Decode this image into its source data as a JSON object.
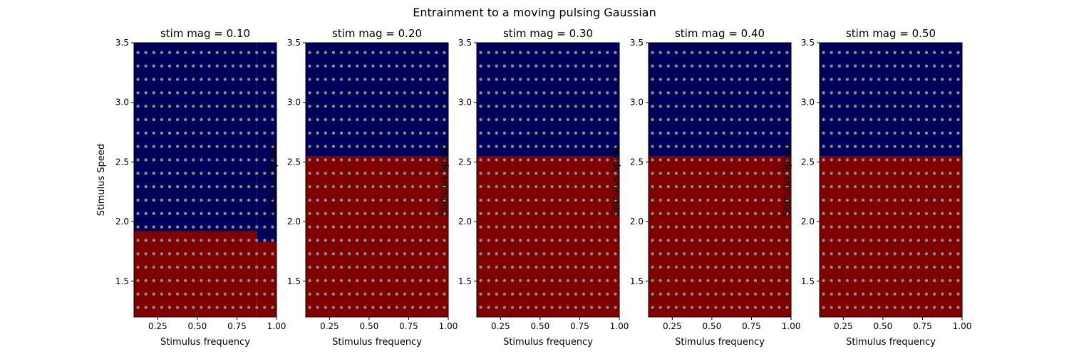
{
  "figure": {
    "suptitle": "Entrainment to a moving pulsing Gaussian"
  },
  "chart_data": [
    {
      "type": "heatmap",
      "title": "stim mag = 0.10",
      "xlabel": "Stimulus frequency",
      "ylabel": "Stimulus Speed",
      "xlim": [
        0.1,
        1.0
      ],
      "ylim": [
        1.2,
        3.5
      ],
      "xticks": [
        0.25,
        0.5,
        0.75,
        1.0
      ],
      "xtick_labels": [
        "0.25",
        "0.50",
        "0.75",
        "1.00"
      ],
      "yticks": [
        1.5,
        2.0,
        2.5,
        3.0,
        3.5
      ],
      "ytick_labels": [
        "1.5",
        "2.0",
        "2.5",
        "3.0",
        "3.5"
      ],
      "regions": [
        {
          "state": "red",
          "x_range": [
            0.1,
            0.875
          ],
          "y_range": [
            1.2,
            1.92
          ]
        },
        {
          "state": "red",
          "x_range": [
            0.875,
            1.0
          ],
          "y_range": [
            1.2,
            1.83
          ]
        },
        {
          "state": "blue",
          "x_range": [
            0.1,
            0.875
          ],
          "y_range": [
            1.92,
            3.5
          ]
        },
        {
          "state": "blue",
          "x_range": [
            0.875,
            1.0
          ],
          "y_range": [
            1.83,
            3.5
          ]
        }
      ],
      "sample_grid": {
        "x_start": 0.125,
        "x_step": 0.05,
        "x_count": 18,
        "y_start": 1.28,
        "y_step": 0.1125,
        "y_count": 20
      }
    },
    {
      "type": "heatmap",
      "title": "stim mag = 0.20",
      "xlabel": "Stimulus frequency",
      "ylabel": "Stimulus Speed",
      "xlim": [
        0.1,
        1.0
      ],
      "ylim": [
        1.2,
        3.5
      ],
      "xticks": [
        0.25,
        0.5,
        0.75,
        1.0
      ],
      "xtick_labels": [
        "0.25",
        "0.50",
        "0.75",
        "1.00"
      ],
      "yticks": [
        1.5,
        2.0,
        2.5,
        3.0,
        3.5
      ],
      "ytick_labels": [
        "1.5",
        "2.0",
        "2.5",
        "3.0",
        "3.5"
      ],
      "regions": [
        {
          "state": "red",
          "x_range": [
            0.1,
            1.0
          ],
          "y_range": [
            1.2,
            2.55
          ]
        },
        {
          "state": "blue",
          "x_range": [
            0.1,
            1.0
          ],
          "y_range": [
            2.55,
            3.5
          ]
        }
      ],
      "sample_grid": {
        "x_start": 0.125,
        "x_step": 0.05,
        "x_count": 18,
        "y_start": 1.28,
        "y_step": 0.1125,
        "y_count": 20
      }
    },
    {
      "type": "heatmap",
      "title": "stim mag = 0.30",
      "xlabel": "Stimulus frequency",
      "ylabel": "Stimulus Speed",
      "xlim": [
        0.1,
        1.0
      ],
      "ylim": [
        1.2,
        3.5
      ],
      "xticks": [
        0.25,
        0.5,
        0.75,
        1.0
      ],
      "xtick_labels": [
        "0.25",
        "0.50",
        "0.75",
        "1.00"
      ],
      "yticks": [
        1.5,
        2.0,
        2.5,
        3.0,
        3.5
      ],
      "ytick_labels": [
        "1.5",
        "2.0",
        "2.5",
        "3.0",
        "3.5"
      ],
      "regions": [
        {
          "state": "red",
          "x_range": [
            0.1,
            1.0
          ],
          "y_range": [
            1.2,
            2.55
          ]
        },
        {
          "state": "blue",
          "x_range": [
            0.1,
            1.0
          ],
          "y_range": [
            2.55,
            3.5
          ]
        }
      ],
      "sample_grid": {
        "x_start": 0.125,
        "x_step": 0.05,
        "x_count": 18,
        "y_start": 1.28,
        "y_step": 0.1125,
        "y_count": 20
      }
    },
    {
      "type": "heatmap",
      "title": "stim mag = 0.40",
      "xlabel": "Stimulus frequency",
      "ylabel": "Stimulus Speed",
      "xlim": [
        0.1,
        1.0
      ],
      "ylim": [
        1.2,
        3.5
      ],
      "xticks": [
        0.25,
        0.5,
        0.75,
        1.0
      ],
      "xtick_labels": [
        "0.25",
        "0.50",
        "0.75",
        "1.00"
      ],
      "yticks": [
        1.5,
        2.0,
        2.5,
        3.0,
        3.5
      ],
      "ytick_labels": [
        "1.5",
        "2.0",
        "2.5",
        "3.0",
        "3.5"
      ],
      "regions": [
        {
          "state": "red",
          "x_range": [
            0.1,
            1.0
          ],
          "y_range": [
            1.2,
            2.55
          ]
        },
        {
          "state": "blue",
          "x_range": [
            0.1,
            1.0
          ],
          "y_range": [
            2.55,
            3.5
          ]
        }
      ],
      "sample_grid": {
        "x_start": 0.125,
        "x_step": 0.05,
        "x_count": 18,
        "y_start": 1.28,
        "y_step": 0.1125,
        "y_count": 20
      }
    },
    {
      "type": "heatmap",
      "title": "stim mag = 0.50",
      "xlabel": "Stimulus frequency",
      "ylabel": "Stimulus Speed",
      "xlim": [
        0.1,
        1.0
      ],
      "ylim": [
        1.2,
        3.5
      ],
      "xticks": [
        0.25,
        0.5,
        0.75,
        1.0
      ],
      "xtick_labels": [
        "0.25",
        "0.50",
        "0.75",
        "1.00"
      ],
      "yticks": [
        1.5,
        2.0,
        2.5,
        3.0,
        3.5
      ],
      "ytick_labels": [
        "1.5",
        "2.0",
        "2.5",
        "3.0",
        "3.5"
      ],
      "regions": [
        {
          "state": "red",
          "x_range": [
            0.1,
            1.0
          ],
          "y_range": [
            1.2,
            2.55
          ]
        },
        {
          "state": "blue",
          "x_range": [
            0.1,
            1.0
          ],
          "y_range": [
            2.55,
            3.5
          ]
        }
      ],
      "sample_grid": {
        "x_start": 0.125,
        "x_step": 0.05,
        "x_count": 18,
        "y_start": 1.28,
        "y_step": 0.1125,
        "y_count": 20
      }
    }
  ],
  "colors": {
    "red": "#800000",
    "blue": "#00005a",
    "dot": "#8c8c8c",
    "axis": "#000000"
  }
}
